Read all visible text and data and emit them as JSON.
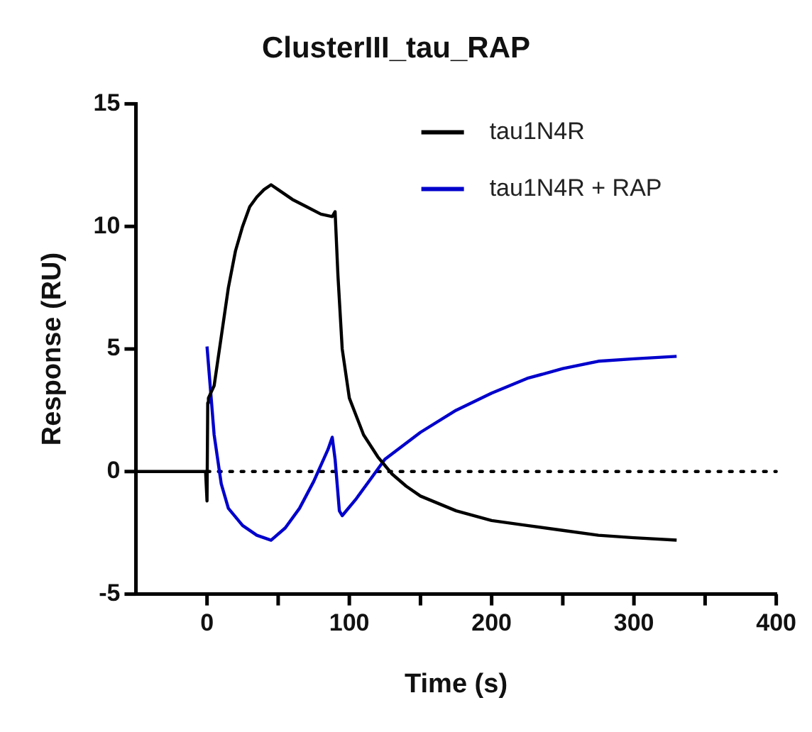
{
  "chart_data": {
    "type": "line",
    "title": "ClusterIII_tau_RAP",
    "xlabel": "Time (s)",
    "ylabel": "Response (RU)",
    "xlim": [
      -50,
      400
    ],
    "xticks": [
      0,
      {
        "value": 50,
        "label": null
      },
      100,
      {
        "value": 150,
        "label": null
      },
      200,
      {
        "value": 250,
        "label": null
      },
      300,
      {
        "value": 350,
        "label": null
      },
      400
    ],
    "ylim": [
      -5,
      15
    ],
    "yticks": [
      -5,
      0,
      5,
      10,
      15
    ],
    "grid": false,
    "legend": "top right",
    "marker": "none",
    "line_style": "solid",
    "ref_lines": [
      {
        "axis": "y",
        "value": 0,
        "label": null,
        "color": "#000000",
        "line_style": "dotted"
      }
    ],
    "series": [
      {
        "name": "tau1N4R",
        "color": "#000000",
        "x": [
          -50,
          -30,
          -10,
          -1,
          0,
          0.5,
          1,
          5,
          10,
          15,
          20,
          25,
          30,
          35,
          40,
          45,
          50,
          60,
          70,
          80,
          88,
          90,
          92,
          95,
          100,
          110,
          120,
          130,
          140,
          150,
          175,
          200,
          225,
          250,
          275,
          300,
          330
        ],
        "values": [
          0,
          0,
          0,
          0,
          -1.2,
          2.8,
          3,
          3.5,
          5.5,
          7.5,
          9,
          10,
          10.8,
          11.2,
          11.5,
          11.7,
          11.5,
          11.1,
          10.8,
          10.5,
          10.4,
          10.6,
          8,
          5,
          3,
          1.5,
          0.6,
          -0.1,
          -0.6,
          -1,
          -1.6,
          -2,
          -2.2,
          -2.4,
          -2.6,
          -2.7,
          -2.8
        ]
      },
      {
        "name": "tau1N4R + RAP",
        "color": "#0000cc",
        "x": [
          0,
          5,
          10,
          15,
          25,
          35,
          45,
          55,
          65,
          75,
          85,
          88,
          90,
          93,
          95,
          105,
          115,
          125,
          150,
          175,
          200,
          225,
          250,
          275,
          300,
          330
        ],
        "values": [
          5.1,
          1.5,
          -0.5,
          -1.5,
          -2.2,
          -2.6,
          -2.8,
          -2.3,
          -1.5,
          -0.4,
          0.9,
          1.4,
          0.5,
          -1.6,
          -1.8,
          -1.1,
          -0.3,
          0.5,
          1.6,
          2.5,
          3.2,
          3.8,
          4.2,
          4.5,
          4.6,
          4.7
        ]
      }
    ]
  }
}
